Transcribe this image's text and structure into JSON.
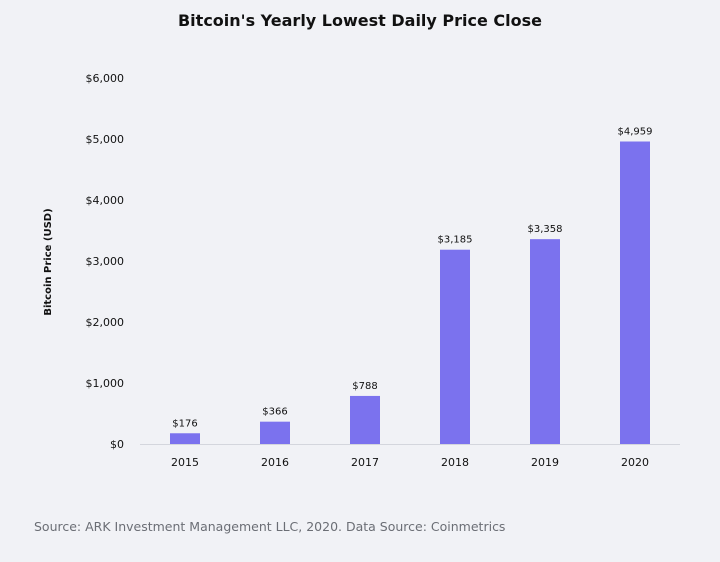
{
  "chart_data": {
    "type": "bar",
    "title": "Bitcoin's Yearly Lowest Daily Price Close",
    "ylabel": "Bitcoin Price (USD)",
    "xlabel": "",
    "categories": [
      "2015",
      "2016",
      "2017",
      "2018",
      "2019",
      "2020"
    ],
    "values": [
      176,
      366,
      788,
      3185,
      3358,
      4959
    ],
    "data_labels": [
      "$176",
      "$366",
      "$788",
      "$3,185",
      "$3,358",
      "$4,959"
    ],
    "ylim": [
      0,
      6000
    ],
    "yticks": [
      0,
      1000,
      2000,
      3000,
      4000,
      5000,
      6000
    ],
    "ytick_labels": [
      "$0",
      "$1,000",
      "$2,000",
      "$3,000",
      "$4,000",
      "$5,000",
      "$6,000"
    ],
    "grid": false,
    "bar_color": "#7b72ee",
    "axis_color": "#d4d6dd"
  },
  "source_text": "Source: ARK Investment Management LLC, 2020. Data Source: Coinmetrics"
}
